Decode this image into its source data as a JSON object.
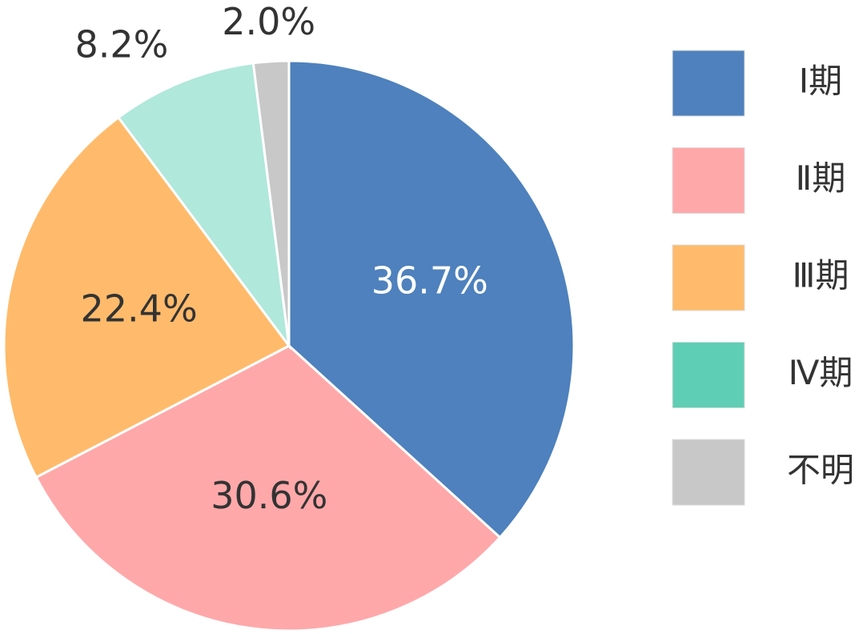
{
  "chart_data": {
    "type": "pie",
    "categories": [
      "Ⅰ期",
      "Ⅱ期",
      "Ⅲ期",
      "Ⅳ期",
      "不明"
    ],
    "values": [
      36.7,
      30.6,
      22.4,
      8.2,
      2.0
    ],
    "value_labels": [
      "36.7%",
      "30.6%",
      "22.4%",
      "8.2%",
      "2.0%"
    ],
    "colors": [
      "#4e81bd",
      "#ffa8aa",
      "#ffbb6b",
      "#b0e8db",
      "#c8c8c8"
    ],
    "legend_colors": [
      "#4e81bd",
      "#ffa8aa",
      "#ffbb6b",
      "#5ecfb4",
      "#c8c8c8"
    ],
    "legend": "right"
  }
}
